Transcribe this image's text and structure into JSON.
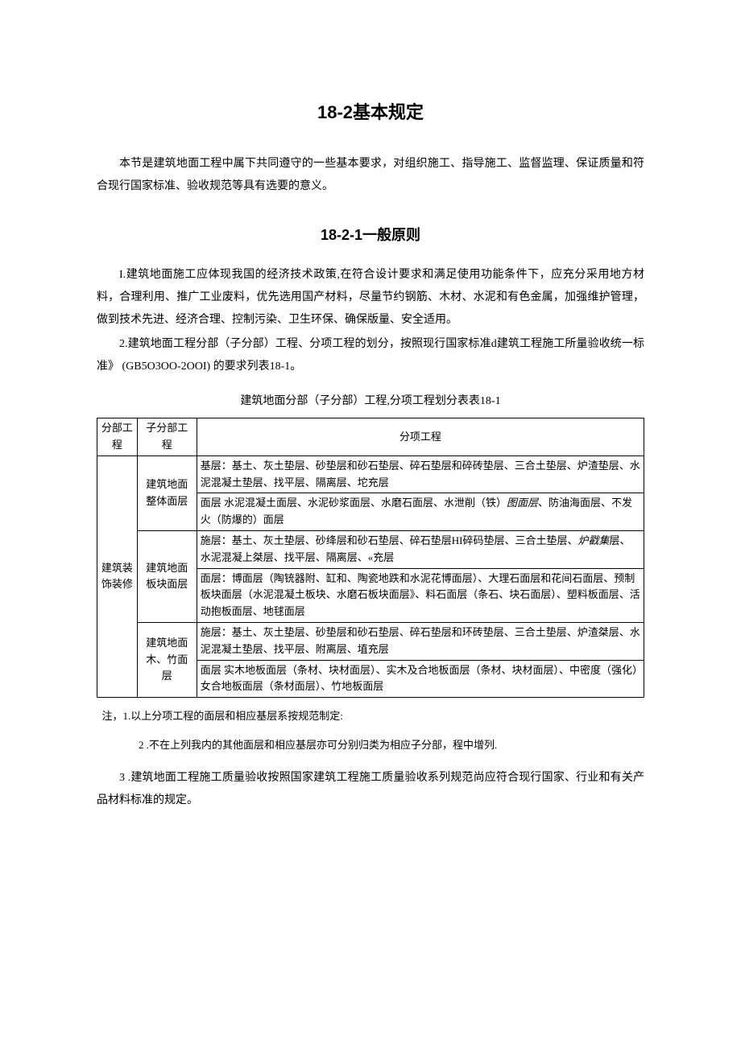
{
  "title_main": "18-2基本规定",
  "title_sub": "18-2-1一般原则",
  "intro_paragraph": "本节是建筑地面工程中属下共同遵守的一些基本要求，对组织施工、指导施工、监督监理、保证质量和符合现行国家标准、验收规范等具有选要的意义。",
  "paragraph_1": "I.建筑地面施工应体现我国的经济技术政策,在符合设计要求和满足使用功能条件下，应充分采用地方材料，合理利用、推广工业废料，优先选用国产材料，尽量节约钢筋、木材、水泥和有色金属，加强维护管理，做到技术先进、经济合理、控制污染、卫生环保、确保版量、安全适用。",
  "paragraph_2": "2.建筑地面工程分部（子分部）工程、分项工程的划分，按照现行国家标准d建筑工程施工所量验收统一标准》 (GB5O3OO-2OOI) 的要求列表18-1。",
  "table_caption": "建筑地面分部（子分部）工程,分项工程划分表表18-1",
  "table": {
    "header": {
      "col1": "分部工程",
      "col2": "子分部工程",
      "col3": "分项工程"
    },
    "rowspan_col1": "建筑装饰装修",
    "rows": [
      {
        "sub": "建筑地面整体面层",
        "cells": [
          "基层：基土、灰土垫层、砂垫层和砂石垫层、碎石垫层和碎砖垫层、三合土垫层、炉渣垫层、水泥混凝土垫层、找平层、隔离层、坨充层",
          "面层 水泥混凝土面层、水泥砂浆面层、水磨石面层、水泄削（铁）图面层、防油海面层、不发火（防爆的）面层"
        ]
      },
      {
        "sub": "建筑地面板块面层",
        "cells": [
          "施层：基土、灰土垫层、砂绛层和砂石垫层、碎石垫层HI碎码垫层、三合土垫层、炉戳集层、水泥混凝上桀层、找平层、隔离层、«充层",
          "面层：博面层（陶铳器附、缸和、陶瓷地跌和水泥花博面层）、大理石面层和花间石面层、预制板块面层（水泥混凝土板块、水磨石板块面层》、料石面层（条石、块石面层）、塑料板面层、活动抱板面层、地毬面层"
        ]
      },
      {
        "sub": "建筑地面木、竹面层",
        "cells": [
          "施层：基土、灰土垫层、砂垫层和砂石垫层、碎石垫层和环砖垫层、三合土垫层、炉渣桀层、水泥混凝土垫层、找平层、附离层、埴充层",
          "面层 实木地板面层（条材、块材面层）、实木及合地板面层（条材、块材面层）、中密度（强化）女合地板面层（条材面层）、竹地板面层"
        ]
      }
    ]
  },
  "note_1": "注，1.以上分项工程的面层和相应基层系按规范制定:",
  "note_2": "2 .不在上列我内的其他面层和相应基层亦可分别归类为相应子分部，程中增列.",
  "paragraph_3": "3 .建筑地面工程施工质量验收按照国家建筑工程施工质量验收系列规范尚应符合现行国家、行业和有关产品材料标准的规定。",
  "styles": {
    "background_color": "#ffffff",
    "text_color": "#000000",
    "border_color": "#000000",
    "title_fontsize": 22,
    "sub_title_fontsize": 18,
    "body_fontsize": 14,
    "table_fontsize": 13
  }
}
